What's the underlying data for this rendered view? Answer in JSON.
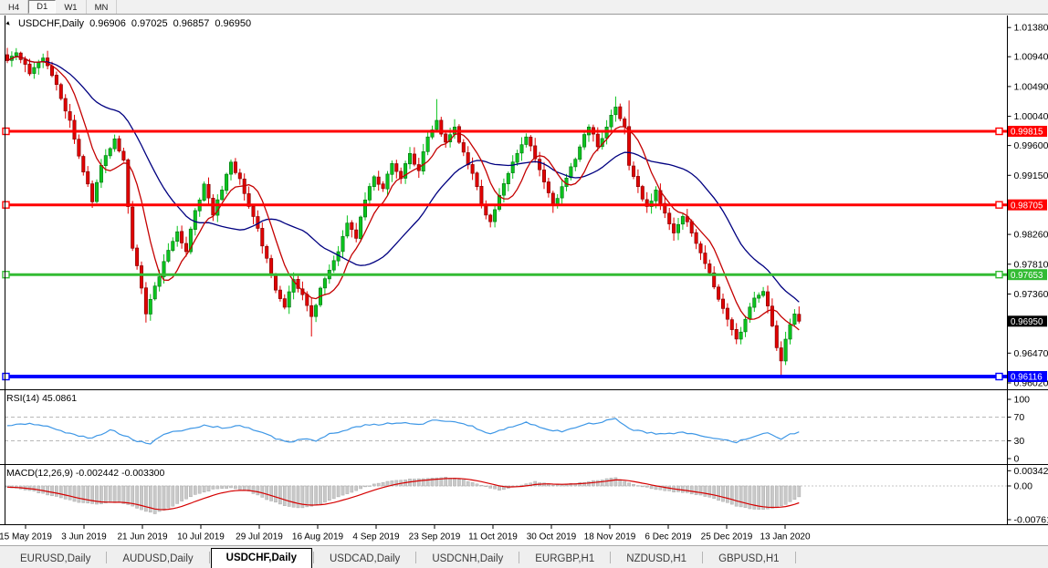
{
  "timeframe_toolbar": {
    "tabs": [
      {
        "label": "H4",
        "active": false
      },
      {
        "label": "D1",
        "active": true
      },
      {
        "label": "W1",
        "active": false
      },
      {
        "label": "MN",
        "active": false
      }
    ]
  },
  "chart_header": {
    "symbol": "USDCHF,Daily",
    "open": "0.96906",
    "high": "0.97025",
    "low": "0.96857",
    "close": "0.96950"
  },
  "indicators": {
    "rsi": {
      "label": "RSI(14) 45.0861",
      "axis_values": [
        100,
        70,
        30,
        0
      ],
      "dashed_levels": [
        70,
        30
      ]
    },
    "macd": {
      "label": "MACD(12,26,9) -0.002442 -0.003300",
      "axis_labels": [
        "0.003428",
        "0.00",
        "-0.007615"
      ],
      "axis_values": [
        0.003428,
        0,
        -0.007615
      ]
    }
  },
  "price_axis": {
    "ticks": [
      {
        "label": "1.01380",
        "price": 1.0138
      },
      {
        "label": "1.00940",
        "price": 1.0094
      },
      {
        "label": "1.00490",
        "price": 1.0049
      },
      {
        "label": "1.00040",
        "price": 1.0004
      },
      {
        "label": "0.99600",
        "price": 0.996
      },
      {
        "label": "0.99150",
        "price": 0.9915
      },
      {
        "label": "0.98260",
        "price": 0.9826
      },
      {
        "label": "0.97810",
        "price": 0.9781
      },
      {
        "label": "0.97360",
        "price": 0.9736
      },
      {
        "label": "0.96470",
        "price": 0.9647
      },
      {
        "label": "0.96020",
        "price": 0.9602
      }
    ],
    "level_labels": [
      {
        "label": "0.99815",
        "price": 0.99815,
        "bg": "#FF0000"
      },
      {
        "label": "0.98705",
        "price": 0.98705,
        "bg": "#FF0000"
      },
      {
        "label": "0.97653",
        "price": 0.97653,
        "bg": "#33BB33"
      },
      {
        "label": "0.96950",
        "price": 0.9695,
        "bg": "#000000"
      },
      {
        "label": "0.96116",
        "price": 0.96116,
        "bg": "#0000FF"
      }
    ]
  },
  "date_axis": {
    "labels": [
      "15 May 2019",
      "3 Jun 2019",
      "21 Jun 2019",
      "10 Jul 2019",
      "29 Jul 2019",
      "16 Aug 2019",
      "4 Sep 2019",
      "23 Sep 2019",
      "11 Oct 2019",
      "30 Oct 2019",
      "18 Nov 2019",
      "6 Dec 2019",
      "25 Dec 2019",
      "13 Jan 2020"
    ]
  },
  "symbol_tab_bar": {
    "tabs": [
      {
        "label": "EURUSD,Daily",
        "active": false
      },
      {
        "label": "AUDUSD,Daily",
        "active": false
      },
      {
        "label": "USDCHF,Daily",
        "active": true
      },
      {
        "label": "USDCAD,Daily",
        "active": false
      },
      {
        "label": "USDCNH,Daily",
        "active": false
      },
      {
        "label": "EURGBP,H1",
        "active": false
      },
      {
        "label": "NZDUSD,H1",
        "active": false
      },
      {
        "label": "GBPUSD,H1",
        "active": false
      }
    ]
  },
  "chart_data": {
    "type": "candlestick",
    "symbol": "USDCHF",
    "timeframe": "Daily",
    "last_ohlc": {
      "open": 0.96906,
      "high": 0.97025,
      "low": 0.96857,
      "close": 0.9695
    },
    "price_axis_range": {
      "top": 1.0152,
      "bottom": 0.9594
    },
    "colors": {
      "bull": "#0BC41E",
      "bull_border": "#036d10",
      "bear": "#E00000",
      "bear_border": "#7a0000",
      "ma_fast": "#C40000",
      "ma_slow": "#000080",
      "rsi_line": "#3E97E6",
      "grid_dash": "#b8b8b8",
      "macd_hist": "#C9C9C9",
      "macd_hist_border": "#ababab",
      "macd_signal": "#D50000",
      "level_red": "#FF0000",
      "level_green": "#33BB33",
      "level_blue": "#0000FF"
    },
    "levels": [
      {
        "price": 0.99815,
        "color": "#FF0000",
        "width": 3
      },
      {
        "price": 0.98705,
        "color": "#FF0000",
        "width": 3
      },
      {
        "price": 0.97653,
        "color": "#33BB33",
        "width": 3
      },
      {
        "price": 0.96116,
        "color": "#0000FF",
        "width": 4
      }
    ],
    "candles": {
      "count": 178,
      "close_anchors": [
        [
          0,
          1.0088
        ],
        [
          2,
          1.01
        ],
        [
          5,
          1.0068
        ],
        [
          8,
          1.0092
        ],
        [
          11,
          1.0052
        ],
        [
          14,
          0.9998
        ],
        [
          17,
          0.992
        ],
        [
          19,
          0.9875
        ],
        [
          21,
          0.993
        ],
        [
          24,
          0.997
        ],
        [
          26,
          0.9938
        ],
        [
          28,
          0.9805
        ],
        [
          30,
          0.9745
        ],
        [
          31,
          0.9706
        ],
        [
          32,
          0.9728
        ],
        [
          34,
          0.9762
        ],
        [
          36,
          0.9802
        ],
        [
          38,
          0.983
        ],
        [
          40,
          0.98
        ],
        [
          42,
          0.9862
        ],
        [
          44,
          0.9902
        ],
        [
          46,
          0.9855
        ],
        [
          48,
          0.9893
        ],
        [
          50,
          0.9935
        ],
        [
          52,
          0.991
        ],
        [
          54,
          0.9868
        ],
        [
          56,
          0.9835
        ],
        [
          58,
          0.979
        ],
        [
          60,
          0.9742
        ],
        [
          62,
          0.9716
        ],
        [
          64,
          0.9758
        ],
        [
          66,
          0.9735
        ],
        [
          68,
          0.9702
        ],
        [
          70,
          0.9745
        ],
        [
          72,
          0.9772
        ],
        [
          74,
          0.98
        ],
        [
          76,
          0.9843
        ],
        [
          78,
          0.982
        ],
        [
          80,
          0.9878
        ],
        [
          82,
          0.9913
        ],
        [
          84,
          0.9895
        ],
        [
          86,
          0.9933
        ],
        [
          88,
          0.991
        ],
        [
          90,
          0.9948
        ],
        [
          92,
          0.9922
        ],
        [
          94,
          0.9973
        ],
        [
          96,
          0.9998
        ],
        [
          98,
          0.9965
        ],
        [
          100,
          0.9988
        ],
        [
          102,
          0.995
        ],
        [
          104,
          0.9918
        ],
        [
          106,
          0.987
        ],
        [
          108,
          0.9845
        ],
        [
          110,
          0.9885
        ],
        [
          112,
          0.9918
        ],
        [
          114,
          0.9948
        ],
        [
          116,
          0.9973
        ],
        [
          118,
          0.994
        ],
        [
          120,
          0.9905
        ],
        [
          122,
          0.987
        ],
        [
          124,
          0.9898
        ],
        [
          126,
          0.9928
        ],
        [
          128,
          0.9958
        ],
        [
          130,
          0.9988
        ],
        [
          132,
          0.9958
        ],
        [
          134,
          0.9988
        ],
        [
          136,
          1.0018
        ],
        [
          138,
          0.9988
        ],
        [
          139,
          0.993
        ],
        [
          141,
          0.9898
        ],
        [
          143,
          0.9868
        ],
        [
          145,
          0.9893
        ],
        [
          147,
          0.9858
        ],
        [
          149,
          0.9828
        ],
        [
          151,
          0.9853
        ],
        [
          153,
          0.9828
        ],
        [
          155,
          0.9798
        ],
        [
          157,
          0.9768
        ],
        [
          159,
          0.9728
        ],
        [
          161,
          0.9698
        ],
        [
          163,
          0.9668
        ],
        [
          165,
          0.9698
        ],
        [
          167,
          0.973
        ],
        [
          169,
          0.974
        ],
        [
          170,
          0.9718
        ],
        [
          171,
          0.9688
        ],
        [
          172,
          0.9655
        ],
        [
          173,
          0.9635
        ],
        [
          174,
          0.9668
        ],
        [
          175,
          0.969
        ],
        [
          176,
          0.9706
        ],
        [
          177,
          0.9695
        ]
      ],
      "wick_overrides": {
        "31": {
          "low": 0.9693
        },
        "68": {
          "low": 0.9672
        },
        "96": {
          "high": 1.003
        },
        "136": {
          "high": 1.0034
        },
        "139": {
          "high": 1.0028
        },
        "173": {
          "low": 0.9614
        }
      }
    },
    "moving_averages": [
      {
        "name": "fast",
        "period": 8,
        "color": "#C40000"
      },
      {
        "name": "slow",
        "period": 26,
        "color": "#000080"
      }
    ],
    "rsi": {
      "period": 14,
      "last": 45.0861,
      "anchors": [
        [
          0,
          55
        ],
        [
          5,
          60
        ],
        [
          10,
          52
        ],
        [
          15,
          40
        ],
        [
          19,
          34
        ],
        [
          23,
          48
        ],
        [
          26,
          40
        ],
        [
          29,
          30
        ],
        [
          32,
          26
        ],
        [
          35,
          42
        ],
        [
          40,
          48
        ],
        [
          44,
          56
        ],
        [
          48,
          52
        ],
        [
          52,
          56
        ],
        [
          56,
          46
        ],
        [
          60,
          34
        ],
        [
          63,
          28
        ],
        [
          66,
          33
        ],
        [
          69,
          30
        ],
        [
          72,
          41
        ],
        [
          76,
          49
        ],
        [
          80,
          56
        ],
        [
          84,
          58
        ],
        [
          88,
          61
        ],
        [
          92,
          57
        ],
        [
          96,
          66
        ],
        [
          100,
          62
        ],
        [
          104,
          54
        ],
        [
          108,
          42
        ],
        [
          112,
          53
        ],
        [
          116,
          61
        ],
        [
          120,
          50
        ],
        [
          124,
          46
        ],
        [
          128,
          56
        ],
        [
          132,
          61
        ],
        [
          136,
          67
        ],
        [
          139,
          50
        ],
        [
          143,
          44
        ],
        [
          147,
          41
        ],
        [
          151,
          44
        ],
        [
          155,
          38
        ],
        [
          159,
          33
        ],
        [
          163,
          28
        ],
        [
          167,
          38
        ],
        [
          170,
          43
        ],
        [
          173,
          34
        ],
        [
          175,
          41
        ],
        [
          177,
          45.1
        ]
      ]
    },
    "macd": {
      "params": "12,26,9",
      "main_last": -0.002442,
      "signal_last": -0.0033,
      "anchors": [
        [
          0,
          -0.0002
        ],
        [
          5,
          -0.001
        ],
        [
          10,
          -0.0022
        ],
        [
          15,
          -0.0035
        ],
        [
          20,
          -0.0042
        ],
        [
          25,
          -0.0036
        ],
        [
          29,
          -0.005
        ],
        [
          33,
          -0.0063
        ],
        [
          37,
          -0.0045
        ],
        [
          42,
          -0.002
        ],
        [
          46,
          -0.0008
        ],
        [
          50,
          -0.0005
        ],
        [
          54,
          -0.0012
        ],
        [
          58,
          -0.003
        ],
        [
          62,
          -0.0045
        ],
        [
          66,
          -0.005
        ],
        [
          70,
          -0.004
        ],
        [
          74,
          -0.0024
        ],
        [
          78,
          -0.001
        ],
        [
          82,
          0.0005
        ],
        [
          86,
          0.0012
        ],
        [
          90,
          0.0015
        ],
        [
          94,
          0.0018
        ],
        [
          98,
          0.002
        ],
        [
          102,
          0.0014
        ],
        [
          106,
          0.0002
        ],
        [
          110,
          -0.001
        ],
        [
          114,
          0.0
        ],
        [
          118,
          0.001
        ],
        [
          122,
          0.0002
        ],
        [
          126,
          0.0005
        ],
        [
          130,
          0.001
        ],
        [
          134,
          0.0016
        ],
        [
          136,
          0.0018
        ],
        [
          140,
          0.0004
        ],
        [
          144,
          -0.0006
        ],
        [
          148,
          -0.0012
        ],
        [
          152,
          -0.0016
        ],
        [
          156,
          -0.0023
        ],
        [
          160,
          -0.0035
        ],
        [
          164,
          -0.0048
        ],
        [
          168,
          -0.0053
        ],
        [
          171,
          -0.005
        ],
        [
          174,
          -0.0042
        ],
        [
          177,
          -0.00244
        ]
      ]
    }
  }
}
